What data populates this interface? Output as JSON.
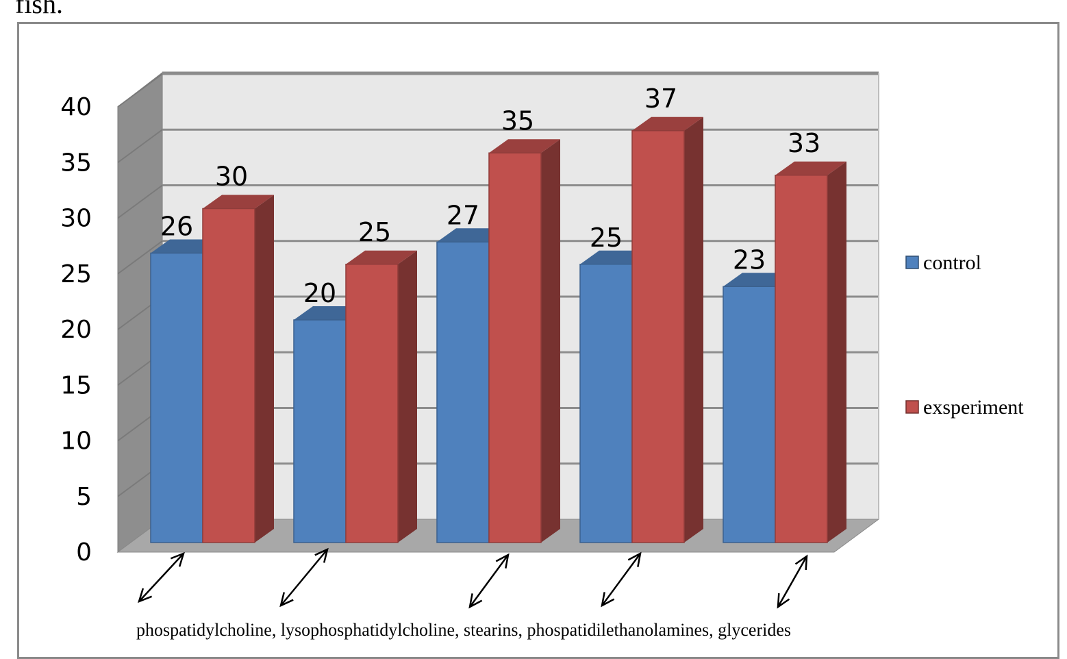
{
  "page": {
    "top_text": "fish."
  },
  "chart_data": {
    "type": "bar",
    "categories": [
      "phospatidylcholine",
      "lysophosphatidylcholine",
      "stearins",
      "phospatidilethanolamines",
      "glycerides"
    ],
    "category_caption": "phospatidylcholine, lysophosphatidylcholine, stearins, phospatidilethanolamines, glycerides",
    "series": [
      {
        "name": "control",
        "values": [
          26,
          20,
          27,
          25,
          23
        ],
        "color": "#4f81bd"
      },
      {
        "name": "exsperiment",
        "values": [
          30,
          25,
          35,
          37,
          33
        ],
        "color": "#c0504d"
      }
    ],
    "y_ticks": [
      0,
      5,
      10,
      15,
      20,
      25,
      30,
      35,
      40
    ],
    "ylim": [
      0,
      40
    ],
    "grid": true,
    "legend_position": "right",
    "style": "3d-clustered-column"
  }
}
